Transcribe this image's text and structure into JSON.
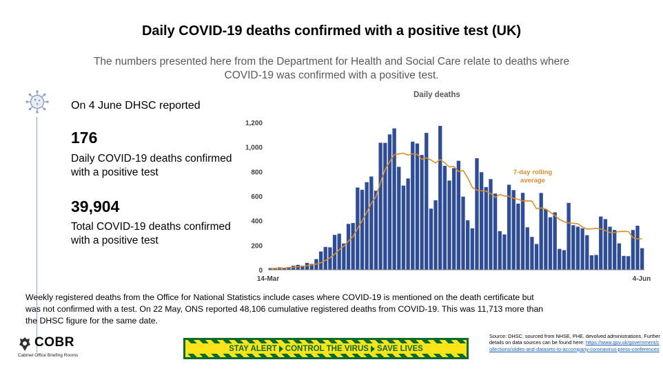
{
  "header": {
    "title": "Daily COVID-19 deaths confirmed with a positive test (UK)",
    "subtitle": "The numbers presented here from the Department for Health and Social Care relate to deaths where COVID-19 was confirmed with a positive test."
  },
  "summary": {
    "reported": "On 4 June DHSC reported",
    "daily_value": "176",
    "daily_label": "Daily COVID-19 deaths confirmed with a positive test",
    "total_value": "39,904",
    "total_label": "Total COVID-19 deaths confirmed with a positive test",
    "icon": "virus-icon"
  },
  "note": "Weekly registered deaths from the Office for National Statistics include cases where COVID-19 is mentioned on the death certificate but was not confirmed with a test. On 22 May, ONS reported 48,106 cumulative registered deaths from COVID-19. This was 11,713 more than the DHSC figure for the same date.",
  "footer": {
    "logo_word": "COBR",
    "logo_sub": "Cabinet Office Briefing Rooms",
    "banner": [
      "STAY ALERT",
      "CONTROL THE VIRUS",
      "SAVE LIVES"
    ],
    "source_text": "Source: DHSC, sourced from NHSE, PHE, devolved administrations. Further details on data sources can be found here:",
    "source_link": "https://www.gov.uk/government/collections/slides-and-datasets-to-accompany-coronavirus-press-conferences"
  },
  "colors": {
    "bar": "#2f4d97",
    "rolling": "#d98d2b",
    "annotation": "#d98d2b",
    "banner_yellow": "#fbe41a",
    "banner_green": "#0b6b2f"
  },
  "chart_data": {
    "type": "bar",
    "title": "Daily deaths",
    "x_start_label": "14-Mar",
    "x_end_label": "4-Jun",
    "ylim": [
      0,
      1200
    ],
    "yticks": [
      0,
      200,
      400,
      600,
      800,
      1000,
      1200
    ],
    "ytick_labels": [
      "0",
      "200",
      "400",
      "600",
      "800",
      "1,000",
      "1,200"
    ],
    "grid": false,
    "annotation": "7-day rolling average",
    "series": [
      {
        "kind": "bar",
        "values": [
          14,
          10,
          20,
          16,
          22,
          33,
          40,
          33,
          56,
          48,
          87,
          149,
          186,
          183,
          284,
          294,
          214,
          374,
          381,
          670,
          652,
          714,
          760,
          644,
          1035,
          1034,
          1103,
          1152,
          839,
          686,
          744,
          1044,
          1029,
          935,
          1115,
          498,
          566,
          1172,
          847,
          727,
          828,
          888,
          596,
          403,
          338,
          909,
          795,
          674,
          739,
          621,
          315,
          288,
          693,
          649,
          539,
          627,
          346,
          268,
          210,
          626,
          494,
          428,
          468,
          170,
          160,
          545,
          363,
          351,
          338,
          282,
          118,
          121,
          434,
          413,
          351,
          324,
          215,
          113,
          111,
          324,
          359,
          176
        ]
      },
      {
        "kind": "line",
        "values": [
          11,
          11,
          13,
          14,
          17,
          21,
          24,
          28,
          33,
          39,
          46,
          58,
          76,
          98,
          127,
          164,
          193,
          234,
          271,
          336,
          400,
          468,
          542,
          595,
          712,
          816,
          880,
          938,
          944,
          950,
          934,
          945,
          940,
          900,
          912,
          894,
          871,
          898,
          871,
          838,
          841,
          800,
          809,
          750,
          672,
          648,
          643,
          641,
          621,
          591,
          613,
          601,
          599,
          582,
          575,
          560,
          562,
          559,
          496,
          504,
          495,
          468,
          441,
          410,
          391,
          382,
          379,
          375,
          348,
          332,
          333,
          338,
          333,
          319,
          304,
          303,
          312,
          313,
          312,
          262,
          252,
          252
        ]
      }
    ]
  }
}
